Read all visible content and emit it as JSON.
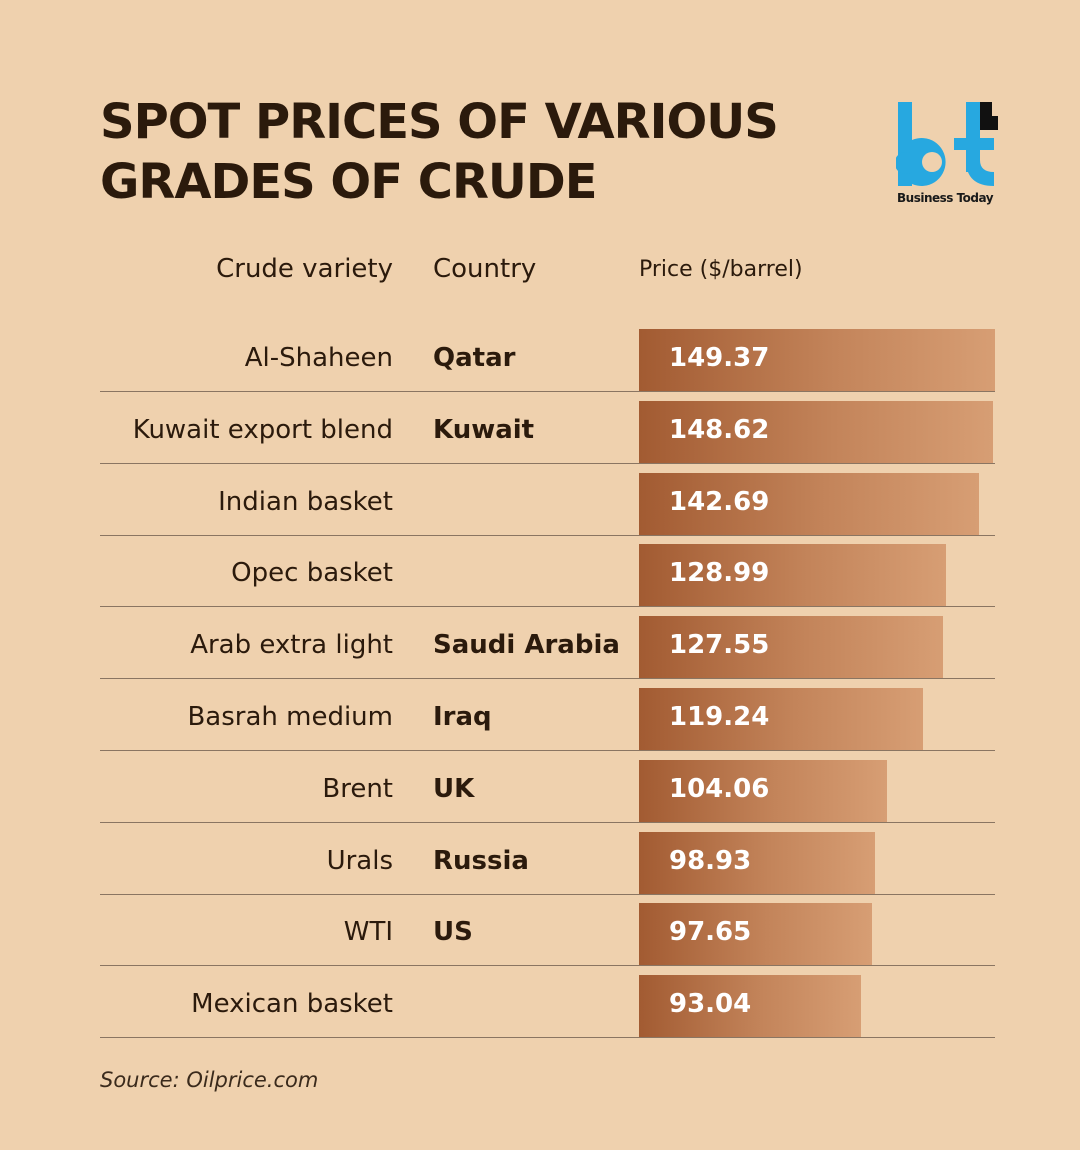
{
  "title": {
    "line1": "SPOT PRICES OF VARIOUS",
    "line2": "GRADES OF CRUDE"
  },
  "logo": {
    "mark": "bt",
    "text": "Business Today",
    "color": "#27a8e0"
  },
  "headers": {
    "variety": "Crude variety",
    "country": "Country",
    "price": "Price ($/barrel)"
  },
  "source": "Source: Oilprice.com",
  "chart_data": {
    "type": "bar",
    "orientation": "horizontal",
    "title": "SPOT PRICES OF VARIOUS GRADES OF CRUDE",
    "xlabel": "Price ($/barrel)",
    "xlim": [
      0,
      149.37
    ],
    "categories": [
      "Al-Shaheen",
      "Kuwait export blend",
      "Indian basket",
      "Opec basket",
      "Arab extra light",
      "Basrah medium",
      "Brent",
      "Urals",
      "WTI",
      "Mexican basket"
    ],
    "countries": [
      "Qatar",
      "Kuwait",
      "",
      "",
      "Saudi Arabia",
      "Iraq",
      "UK",
      "Russia",
      "US",
      ""
    ],
    "values": [
      149.37,
      148.62,
      142.69,
      128.99,
      127.55,
      119.24,
      104.06,
      98.93,
      97.65,
      93.04
    ],
    "value_labels": [
      "149.37",
      "148.62",
      "142.69",
      "128.99",
      "127.55",
      "119.24",
      "104.06",
      "98.93",
      "97.65",
      "93.04"
    ],
    "bar_color": "#a25b32",
    "grid": false
  }
}
